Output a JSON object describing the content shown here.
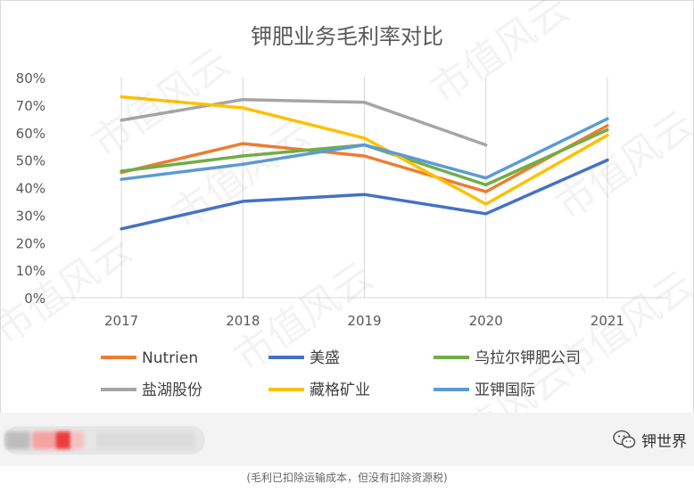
{
  "chart_data": {
    "type": "line",
    "title": "钾肥业务毛利率对比",
    "categories": [
      "2017",
      "2018",
      "2019",
      "2020",
      "2021"
    ],
    "ylim": [
      0,
      80
    ],
    "yticks": [
      "0%",
      "10%",
      "20%",
      "30%",
      "40%",
      "50%",
      "60%",
      "70%",
      "80%"
    ],
    "grid": "vertical",
    "legend_position": "bottom",
    "series": [
      {
        "name": "Nutrien",
        "color": "#ed7d31",
        "values": [
          45.5,
          56,
          51.5,
          38.5,
          62.5
        ]
      },
      {
        "name": "美盛",
        "color": "#4472c4",
        "values": [
          25,
          35,
          37.5,
          30.5,
          50
        ]
      },
      {
        "name": "乌拉尔钾肥公司",
        "color": "#70ad47",
        "values": [
          46,
          51.5,
          55.5,
          41,
          61
        ]
      },
      {
        "name": "盐湖股份",
        "color": "#a5a5a5",
        "values": [
          64.5,
          72,
          71,
          55.5,
          null
        ]
      },
      {
        "name": "藏格矿业",
        "color": "#ffc000",
        "values": [
          73,
          69,
          58,
          34,
          59
        ]
      },
      {
        "name": "亚钾国际",
        "color": "#5b9bd5",
        "values": [
          43,
          48.5,
          55.5,
          43.5,
          65
        ]
      }
    ]
  },
  "footer": {
    "brand": "钾世界",
    "note": "(毛利已扣除运输成本，但没有扣除资源税)",
    "watermark": "市值风云"
  },
  "icons": {
    "brand_icon": "wechat-icon"
  }
}
